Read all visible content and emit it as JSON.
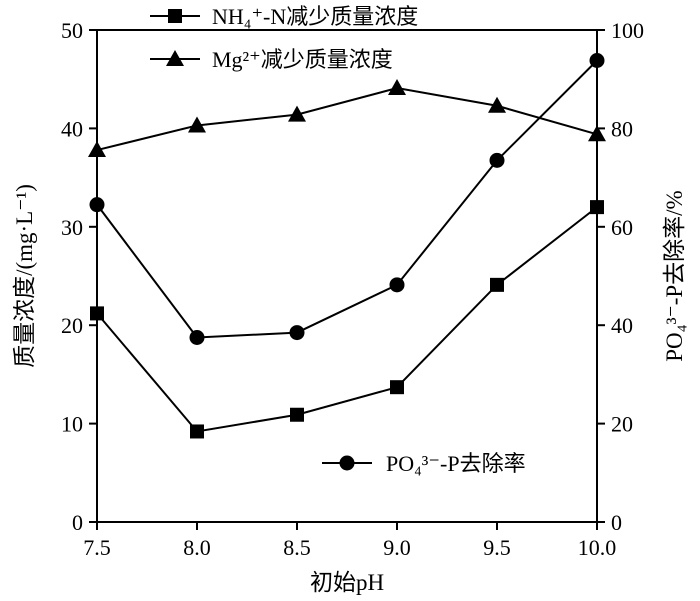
{
  "chart_data": {
    "type": "line",
    "x": [
      7.5,
      8.0,
      8.5,
      9.0,
      9.5,
      10.0
    ],
    "x_tick_labels": [
      "7.5",
      "8.0",
      "8.5",
      "9.0",
      "9.5",
      "10.0"
    ],
    "xlabel": "初始pH",
    "xlim": [
      7.5,
      10.0
    ],
    "y_left": {
      "label": "质量浓度/(mg·L⁻¹)",
      "lim": [
        0,
        50
      ],
      "ticks": [
        "0",
        "10",
        "20",
        "30",
        "40",
        "50"
      ]
    },
    "y_right": {
      "label": "PO₄³⁻-P去除率/%",
      "lim": [
        0,
        100
      ],
      "ticks": [
        "0",
        "20",
        "40",
        "60",
        "80",
        "100"
      ]
    },
    "series": [
      {
        "name": "NH₄⁺-N减少质量浓度",
        "axis": "left",
        "marker": "square",
        "values": [
          21.2,
          9.2,
          10.9,
          13.7,
          24.1,
          32.0
        ]
      },
      {
        "name": "Mg²⁺减少质量浓度",
        "axis": "left",
        "marker": "triangle",
        "values": [
          37.8,
          40.3,
          41.4,
          44.1,
          42.3,
          39.4
        ]
      },
      {
        "name": "PO₄³⁻-P去除率",
        "axis": "right",
        "marker": "circle",
        "values": [
          64.5,
          37.5,
          38.5,
          48.2,
          73.5,
          93.8
        ]
      }
    ],
    "grid": false,
    "legend": [
      "top-center",
      "bottom-right"
    ]
  }
}
